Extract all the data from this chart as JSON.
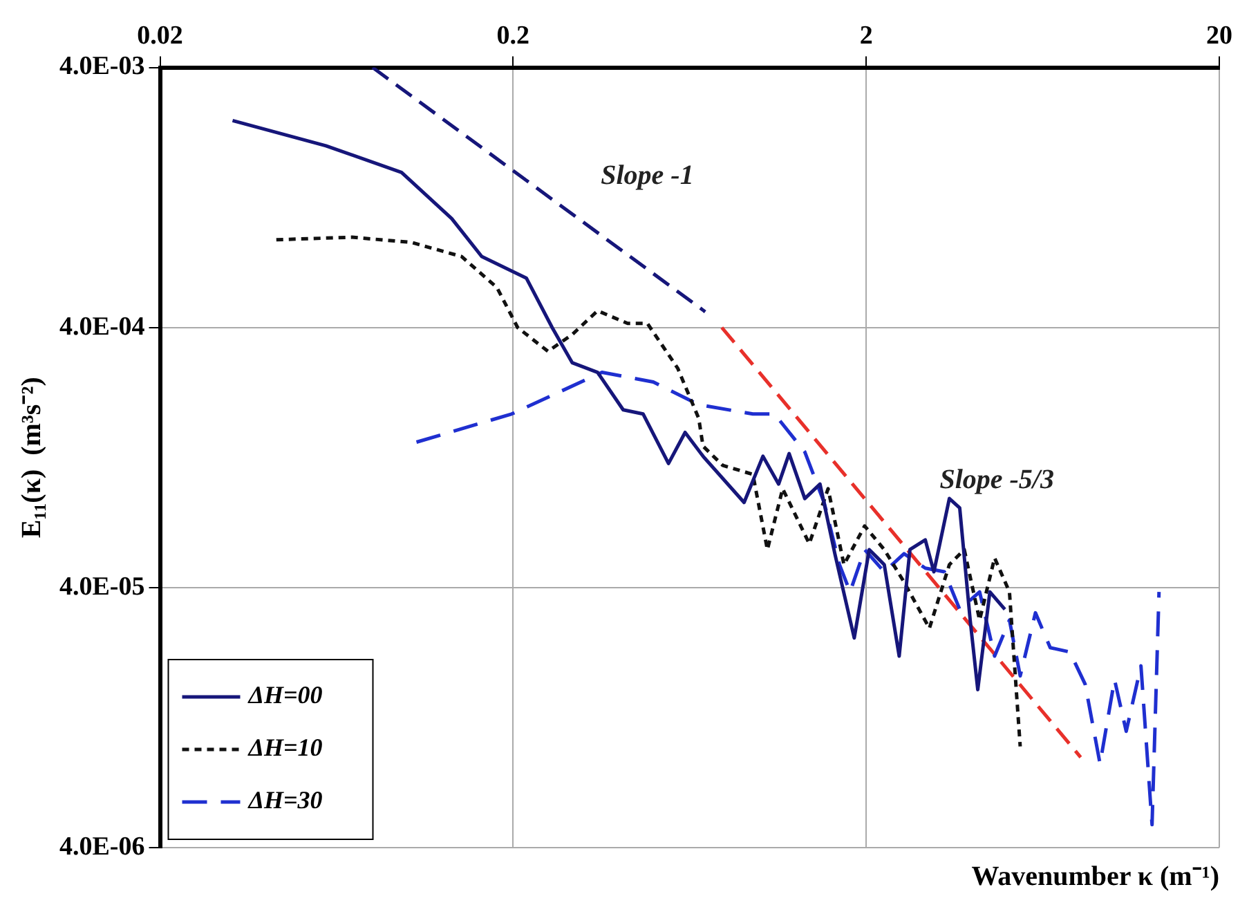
{
  "chart_data": {
    "type": "line",
    "xlabel": "Wavenumber κ (m⁻¹)",
    "ylabel": "E₁₁(κ)  (m³s⁻²)",
    "log": "xy",
    "xlim": [
      0.02,
      20
    ],
    "xticks": [
      0.02,
      0.2,
      2,
      20
    ],
    "ylim": [
      4e-06,
      0.004
    ],
    "yticks": [
      {
        "value": 0.004,
        "label": "4.0E-03"
      },
      {
        "value": 0.0004,
        "label": "4.0E-04"
      },
      {
        "value": 4e-05,
        "label": "4.0E-05"
      },
      {
        "value": 4e-06,
        "label": "4.0E-06"
      }
    ],
    "grid": true,
    "legend": "bottom left",
    "marker": "none",
    "series": [
      {
        "name": "ΔH=00",
        "color": "#16167a",
        "line_style": "solid",
        "x": [
          0.0321,
          0.059,
          0.0966,
          0.134,
          0.163,
          0.218,
          0.258,
          0.294,
          0.347,
          0.41,
          0.467,
          0.551,
          0.614,
          0.69,
          0.902,
          1.02,
          1.13,
          1.21,
          1.34,
          1.48,
          1.63,
          1.85,
          2.04,
          2.25,
          2.48,
          2.66,
          2.94,
          3.11,
          3.44,
          3.68,
          3.94,
          4.14,
          4.48,
          4.94
        ],
        "values": [
          0.0025,
          0.002,
          0.00158,
          0.00105,
          0.00075,
          0.00062,
          0.0004,
          0.000293,
          0.000269,
          0.000193,
          0.000186,
          0.00012,
          0.000158,
          0.000128,
          8.5e-05,
          0.000128,
          0.0001,
          0.000131,
          8.8e-05,
          0.0001,
          5.4e-05,
          2.56e-05,
          5.6e-05,
          4.9e-05,
          2.18e-05,
          5.6e-05,
          6.1e-05,
          4.6e-05,
          8.8e-05,
          8.1e-05,
          3e-05,
          1.62e-05,
          3.85e-05,
          3.3e-05
        ]
      },
      {
        "name": "ΔH=10",
        "color": "#111111",
        "line_style": "dotted",
        "x": [
          0.0427,
          0.0698,
          0.103,
          0.143,
          0.18,
          0.206,
          0.251,
          0.294,
          0.347,
          0.422,
          0.48,
          0.585,
          0.671,
          0.69,
          0.785,
          0.955,
          1.05,
          1.16,
          1.38,
          1.56,
          1.73,
          1.98,
          2.25,
          2.56,
          3.02,
          3.44,
          3.79,
          4.19,
          4.62,
          5.09,
          5.46
        ],
        "values": [
          0.00087,
          0.00089,
          0.00085,
          0.00075,
          0.00057,
          0.0004,
          0.000324,
          0.000376,
          0.000464,
          0.000415,
          0.000415,
          0.000279,
          0.000179,
          0.00014,
          0.000118,
          0.000109,
          5.6e-05,
          9.6e-05,
          5.9e-05,
          9.6e-05,
          4.9e-05,
          6.9e-05,
          5.6e-05,
          4.2e-05,
          2.79e-05,
          4.9e-05,
          5.6e-05,
          3e-05,
          5.2e-05,
          3.85e-05,
          9.8e-06
        ]
      },
      {
        "name": "ΔH=30",
        "color": "#1f2fd0",
        "line_style": "dashed",
        "x": [
          0.1065,
          0.198,
          0.357,
          0.499,
          0.671,
          0.955,
          1.1,
          1.34,
          1.52,
          1.68,
          1.8,
          1.98,
          2.25,
          2.56,
          2.94,
          3.33,
          3.68,
          4.19,
          4.62,
          5.09,
          5.46,
          6.03,
          6.64,
          7.55,
          8.34,
          9.19,
          10.1,
          10.9,
          12,
          12.9,
          13.5
        ],
        "values": [
          0.000145,
          0.000186,
          0.000269,
          0.000247,
          0.000202,
          0.000186,
          0.000186,
          0.000133,
          8.5e-05,
          4.9e-05,
          3.85e-05,
          5.6e-05,
          4.6e-05,
          5.4e-05,
          4.75e-05,
          4.6e-05,
          3.3e-05,
          3.85e-05,
          2.18e-05,
          3e-05,
          1.83e-05,
          3.2e-05,
          2.35e-05,
          2.26e-05,
          1.7e-05,
          8.4e-06,
          1.77e-05,
          1.12e-05,
          2e-05,
          4.9e-06,
          3.85e-05
        ]
      },
      {
        "color": "#16167a",
        "line_style": "dashed",
        "x": [
          0.08,
          0.7
        ],
        "values": [
          0.004,
          0.00046
        ]
      },
      {
        "color": "#e8302a",
        "line_style": "dashed",
        "x": [
          0.78,
          8.1
        ],
        "values": [
          0.0004,
          8.9e-06
        ]
      }
    ],
    "annotations": [
      "Slope -1",
      "Slope -5/3"
    ]
  }
}
